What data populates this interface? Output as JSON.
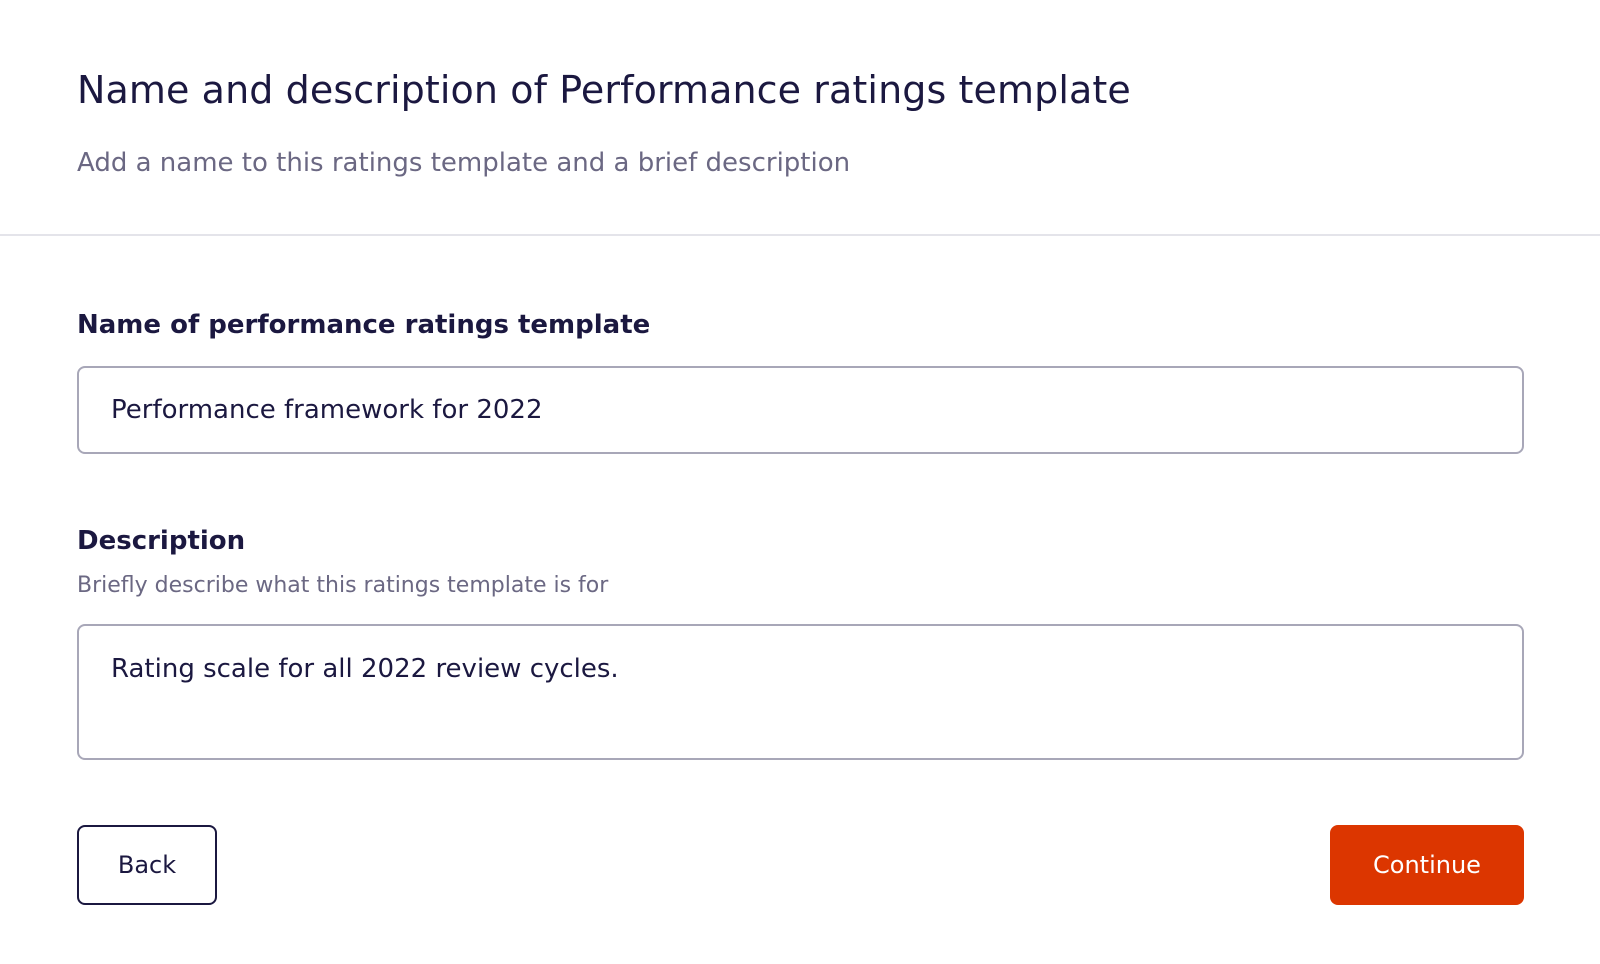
{
  "header": {
    "title": "Name and description of Performance ratings template",
    "subtitle": "Add a name to this ratings template and a brief description"
  },
  "form": {
    "name_field": {
      "label": "Name of performance ratings template",
      "value": "Performance framework for 2022"
    },
    "description_field": {
      "label": "Description",
      "hint": "Briefly describe what this ratings template is for",
      "value": "Rating scale for all 2022 review cycles."
    }
  },
  "actions": {
    "back_label": "Back",
    "continue_label": "Continue"
  },
  "colors": {
    "primary_action": "#dc3600",
    "text_primary": "#1b1840",
    "text_secondary": "#6b6883",
    "border": "#a8a7b8",
    "divider": "#e4e4ea"
  }
}
